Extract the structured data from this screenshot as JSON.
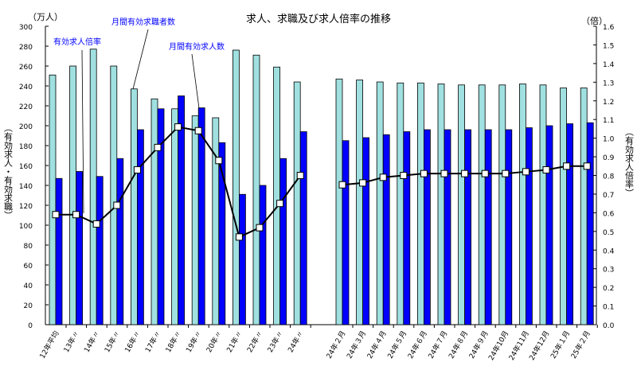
{
  "chart_data": {
    "type": "bar",
    "title": "求人、求職及び求人倍率の推移",
    "left_unit": "（万人）",
    "right_unit": "（倍）",
    "ylabel": "（有効求人・有効求職）",
    "y2label": "（有効求人倍率）",
    "ylim": [
      0,
      300
    ],
    "y2lim": [
      0,
      1.6
    ],
    "yticks": [
      "0",
      "20",
      "40",
      "60",
      "80",
      "100",
      "120",
      "140",
      "160",
      "180",
      "200",
      "220",
      "240",
      "260",
      "280",
      "300"
    ],
    "y2ticks": [
      "0.0",
      "0.1",
      "0.2",
      "0.3",
      "0.4",
      "0.5",
      "0.6",
      "0.7",
      "0.8",
      "0.9",
      "1.0",
      "1.1",
      "1.2",
      "1.3",
      "1.4",
      "1.5",
      "1.6"
    ],
    "annotations": {
      "ratio": "有効求人倍率",
      "seekers": "月間有効求職者数",
      "openings": "月間有効求人数"
    },
    "colors": {
      "seekers": "#a0e0e0",
      "openings": "#0000ff",
      "line": "#000000"
    },
    "annual": {
      "categories": [
        "12年平均",
        "13年〃",
        "14年〃",
        "15年〃",
        "16年〃",
        "17年〃",
        "18年〃",
        "19年〃",
        "20年〃",
        "21年〃",
        "22年〃",
        "23年〃",
        "24年〃"
      ],
      "seekers": [
        251,
        260,
        277,
        260,
        237,
        227,
        217,
        210,
        208,
        276,
        271,
        259,
        244
      ],
      "openings": [
        147,
        154,
        149,
        167,
        196,
        217,
        230,
        218,
        183,
        131,
        140,
        167,
        194
      ],
      "ratio": [
        0.59,
        0.59,
        0.54,
        0.64,
        0.83,
        0.95,
        1.06,
        1.04,
        0.88,
        0.47,
        0.52,
        0.65,
        0.8
      ]
    },
    "monthly": {
      "categories": [
        "24年２月",
        "24年３月",
        "24年４月",
        "24年５月",
        "24年６月",
        "24年７月",
        "24年８月",
        "24年９月",
        "24年10月",
        "24年11月",
        "24年12月",
        "25年１月",
        "25年２月"
      ],
      "seekers": [
        247,
        246,
        244,
        243,
        243,
        242,
        241,
        241,
        241,
        242,
        241,
        238,
        238
      ],
      "openings": [
        185,
        188,
        191,
        194,
        196,
        196,
        196,
        196,
        196,
        198,
        200,
        202,
        203
      ],
      "ratio": [
        0.75,
        0.76,
        0.79,
        0.8,
        0.81,
        0.81,
        0.81,
        0.81,
        0.81,
        0.82,
        0.83,
        0.85,
        0.85
      ]
    }
  }
}
